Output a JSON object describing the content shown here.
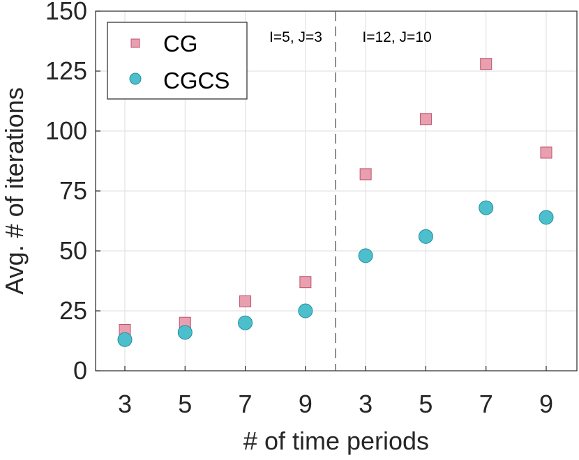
{
  "chart_data": {
    "type": "scatter",
    "title": "",
    "xlabel": "# of time periods",
    "ylabel": "Avg. # of iterations",
    "categories": [
      "3",
      "5",
      "7",
      "9",
      "3",
      "5",
      "7",
      "9"
    ],
    "ylim": [
      0,
      150
    ],
    "yticks": [
      "0",
      "25",
      "50",
      "75",
      "100",
      "125",
      "150"
    ],
    "ytick_values": [
      0,
      25,
      50,
      75,
      100,
      125,
      150
    ],
    "grid": true,
    "legend_position": "top-left",
    "groups": [
      {
        "label": "I=5, J=3",
        "categories": [
          "3",
          "5",
          "7",
          "9"
        ]
      },
      {
        "label": "I=12, J=10",
        "categories": [
          "3",
          "5",
          "7",
          "9"
        ]
      }
    ],
    "series": [
      {
        "name": "CG",
        "marker": "square",
        "color": "#e8a0b0",
        "edge": "#c0506a",
        "values": [
          17,
          20,
          29,
          37,
          82,
          105,
          128,
          91
        ]
      },
      {
        "name": "CGCS",
        "marker": "circle",
        "color": "#4dbfcc",
        "edge": "#1e8f9c",
        "values": [
          13,
          16,
          20,
          25,
          48,
          56,
          68,
          64
        ]
      }
    ],
    "annotations": [
      "I=5, J=3",
      "I=12, J=10"
    ]
  }
}
